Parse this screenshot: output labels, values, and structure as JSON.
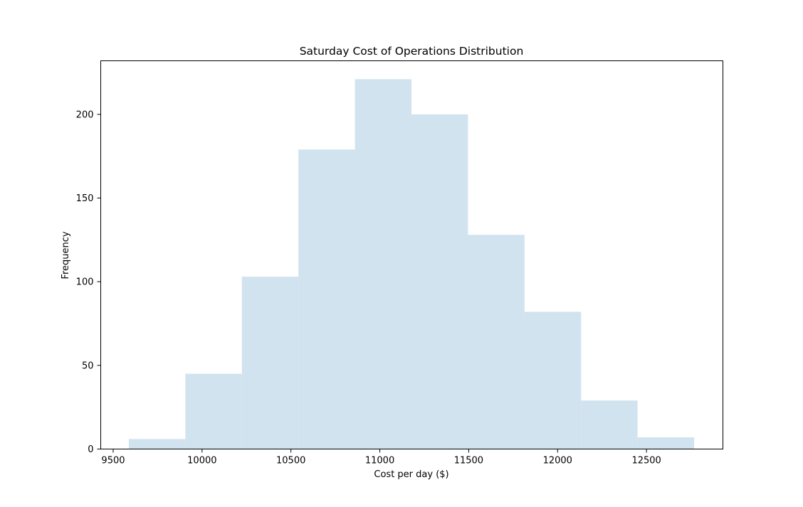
{
  "chart_data": {
    "type": "bar",
    "title": "Saturday Cost of Operations Distribution",
    "xlabel": "Cost per day ($)",
    "ylabel": "Frequency",
    "xlim": [
      9430,
      12930
    ],
    "ylim": [
      0,
      232
    ],
    "x_ticks": [
      9500,
      10000,
      10500,
      11000,
      11500,
      12000,
      12500
    ],
    "y_ticks": [
      0,
      50,
      100,
      150,
      200
    ],
    "bins": [
      {
        "start": 9588,
        "end": 9906,
        "count": 6
      },
      {
        "start": 9906,
        "end": 10224,
        "count": 45
      },
      {
        "start": 10224,
        "end": 10542,
        "count": 103
      },
      {
        "start": 10542,
        "end": 10860,
        "count": 179
      },
      {
        "start": 10860,
        "end": 11178,
        "count": 221
      },
      {
        "start": 11178,
        "end": 11496,
        "count": 200
      },
      {
        "start": 11496,
        "end": 11814,
        "count": 128
      },
      {
        "start": 11814,
        "end": 12132,
        "count": 82
      },
      {
        "start": 12132,
        "end": 12450,
        "count": 29
      },
      {
        "start": 12450,
        "end": 12768,
        "count": 7
      }
    ],
    "bar_color": "#d1e3ee",
    "grid": false,
    "legend": "none"
  }
}
